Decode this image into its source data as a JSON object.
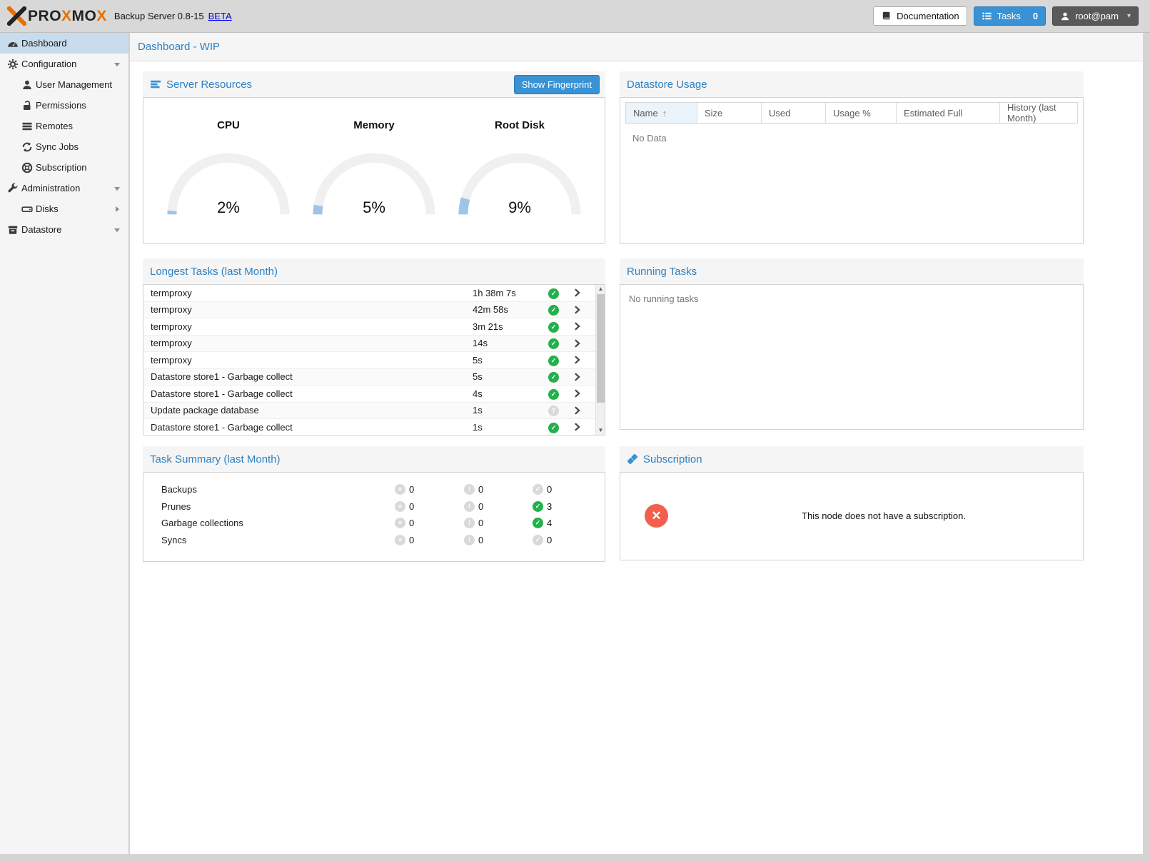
{
  "topbar": {
    "logo_text": "PROXMOX",
    "product": "Backup Server 0.8-15",
    "beta": "BETA",
    "documentation": "Documentation",
    "tasks_label": "Tasks",
    "tasks_count": "0",
    "user": "root@pam"
  },
  "sidebar": {
    "items": [
      {
        "label": "Dashboard",
        "icon": "dashboard-icon",
        "sym": "tachometer",
        "level": 0,
        "selected": true,
        "arrow": null
      },
      {
        "label": "Configuration",
        "icon": "gears-icon",
        "sym": "gear",
        "level": 0,
        "selected": false,
        "arrow": "down"
      },
      {
        "label": "User Management",
        "icon": "user-icon",
        "sym": "user",
        "level": 1,
        "selected": false,
        "arrow": null
      },
      {
        "label": "Permissions",
        "icon": "unlock-icon",
        "sym": "unlock",
        "level": 1,
        "selected": false,
        "arrow": null
      },
      {
        "label": "Remotes",
        "icon": "remotes-icon",
        "sym": "bars3",
        "level": 1,
        "selected": false,
        "arrow": null
      },
      {
        "label": "Sync Jobs",
        "icon": "sync-icon",
        "sym": "sync",
        "level": 1,
        "selected": false,
        "arrow": null
      },
      {
        "label": "Subscription",
        "icon": "life-ring-icon",
        "sym": "lifering",
        "level": 1,
        "selected": false,
        "arrow": null
      },
      {
        "label": "Administration",
        "icon": "wrench-icon",
        "sym": "wrench",
        "level": 0,
        "selected": false,
        "arrow": "down"
      },
      {
        "label": "Disks",
        "icon": "hdd-icon",
        "sym": "hdd",
        "level": 1,
        "selected": false,
        "arrow": "right"
      },
      {
        "label": "Datastore",
        "icon": "archive-icon",
        "sym": "archive",
        "level": 0,
        "selected": false,
        "arrow": "down"
      }
    ]
  },
  "page": {
    "title": "Dashboard - WIP"
  },
  "server_resources": {
    "title": "Server Resources",
    "fingerprint_button": "Show Fingerprint",
    "gauges": [
      {
        "label": "CPU",
        "value": "2%",
        "percent": 2
      },
      {
        "label": "Memory",
        "value": "5%",
        "percent": 5
      },
      {
        "label": "Root Disk",
        "value": "9%",
        "percent": 9
      }
    ]
  },
  "datastore_usage": {
    "title": "Datastore Usage",
    "columns": [
      "Name",
      "Size",
      "Used",
      "Usage %",
      "Estimated Full",
      "History (last Month)"
    ],
    "sorted_column": "Name",
    "sort_arrow": "↑",
    "empty": "No Data"
  },
  "longest_tasks": {
    "title": "Longest Tasks (last Month)",
    "rows": [
      {
        "name": "termproxy",
        "duration": "1h 38m 7s",
        "status": "ok"
      },
      {
        "name": "termproxy",
        "duration": "42m 58s",
        "status": "ok"
      },
      {
        "name": "termproxy",
        "duration": "3m 21s",
        "status": "ok"
      },
      {
        "name": "termproxy",
        "duration": "14s",
        "status": "ok"
      },
      {
        "name": "termproxy",
        "duration": "5s",
        "status": "ok"
      },
      {
        "name": "Datastore store1 - Garbage collect",
        "duration": "5s",
        "status": "ok"
      },
      {
        "name": "Datastore store1 - Garbage collect",
        "duration": "4s",
        "status": "ok"
      },
      {
        "name": "Update package database",
        "duration": "1s",
        "status": "unknown"
      },
      {
        "name": "Datastore store1 - Garbage collect",
        "duration": "1s",
        "status": "ok"
      }
    ]
  },
  "running_tasks": {
    "title": "Running Tasks",
    "empty": "No running tasks"
  },
  "task_summary": {
    "title": "Task Summary (last Month)",
    "rows": [
      {
        "label": "Backups",
        "error": "0",
        "warning": "0",
        "ok": "0",
        "ok_active": false
      },
      {
        "label": "Prunes",
        "error": "0",
        "warning": "0",
        "ok": "3",
        "ok_active": true
      },
      {
        "label": "Garbage collections",
        "error": "0",
        "warning": "0",
        "ok": "4",
        "ok_active": true
      },
      {
        "label": "Syncs",
        "error": "0",
        "warning": "0",
        "ok": "0",
        "ok_active": false
      }
    ]
  },
  "subscription_panel": {
    "title": "Subscription",
    "message": "This node does not have a subscription."
  },
  "colors": {
    "accent_blue": "#3892d4",
    "title_blue": "#2e81c4",
    "gauge_track": "#f0f0f0",
    "gauge_value": "#9ec5e8",
    "status_green": "#23b14d",
    "status_gray": "#d9d9d9",
    "error_red": "#f2604d",
    "logo_orange": "#e57000",
    "selected_item_bg": "#c8dcee"
  }
}
